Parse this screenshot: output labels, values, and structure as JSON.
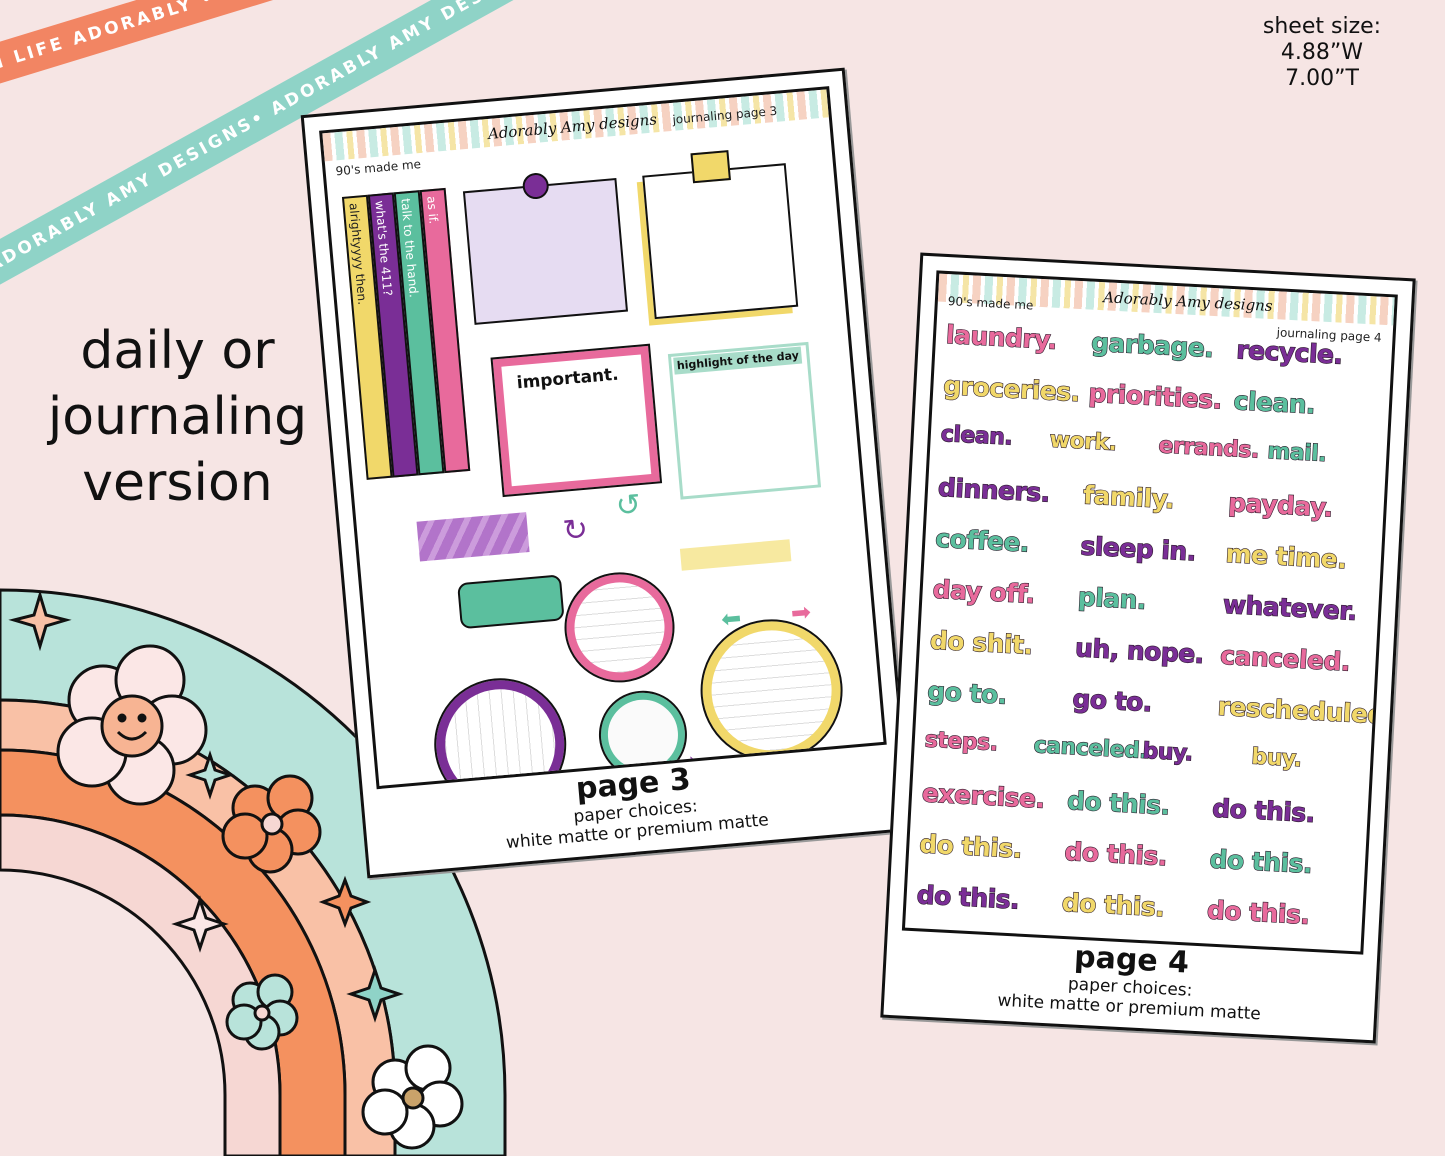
{
  "ribbons": {
    "top": "PLAN LIFE ADORABLY • PLAN LIFE ADORABLY • PLAN LIFE ADORABLY •",
    "bottom": "ADORABLY AMY DESIGNS• ADORABLY AMY DESIGNS• ADORABLY AMY DESIGNS•"
  },
  "sheet_size": {
    "label": "sheet size:",
    "width": "4.88”W",
    "height": "7.00”T"
  },
  "headline": {
    "line1": "daily or",
    "line2": "journaling",
    "line3": "version"
  },
  "colors": {
    "pink": "#e86a9c",
    "green": "#5bbf9e",
    "purple": "#7a2e96",
    "yellow": "#f1d86a",
    "coral": "#f28563",
    "mint": "#8fd3c7"
  },
  "page3": {
    "theme": "90's made me",
    "brand": "Adorably Amy designs",
    "header_title": "journaling page 3",
    "strips": [
      "alrightyyyy then.",
      "what's the 411?",
      "talk to the hand.",
      "as if."
    ],
    "boxes": {
      "important": "important.",
      "highlight": "highlight of the day"
    },
    "caption": {
      "page": "page 3",
      "paper_label": "paper choices:",
      "paper_options": "white matte or premium matte"
    }
  },
  "page4": {
    "theme": "90's made me",
    "brand": "Adorably Amy designs",
    "header_title": "journaling page 4",
    "words": [
      [
        "laundry.",
        "garbage.",
        "recycle."
      ],
      [
        "groceries.",
        "priorities.",
        "clean."
      ],
      [
        "clean.",
        "work.",
        "errands.",
        "mail."
      ],
      [
        "dinners.",
        "family.",
        "payday."
      ],
      [
        "coffee.",
        "sleep in.",
        "me time."
      ],
      [
        "day off.",
        "plan.",
        "whatever."
      ],
      [
        "do shit.",
        "uh, nope.",
        "canceled."
      ],
      [
        "go to.",
        "go to.",
        "rescheduled."
      ],
      [
        "steps.",
        "canceled.",
        "buy.",
        "buy."
      ],
      [
        "exercise.",
        "do this.",
        "do this."
      ],
      [
        "do this.",
        "do this.",
        "do this."
      ],
      [
        "do this.",
        "do this.",
        "do this."
      ]
    ],
    "caption": {
      "page": "page 4",
      "paper_label": "paper choices:",
      "paper_options": "white matte or premium matte"
    }
  }
}
